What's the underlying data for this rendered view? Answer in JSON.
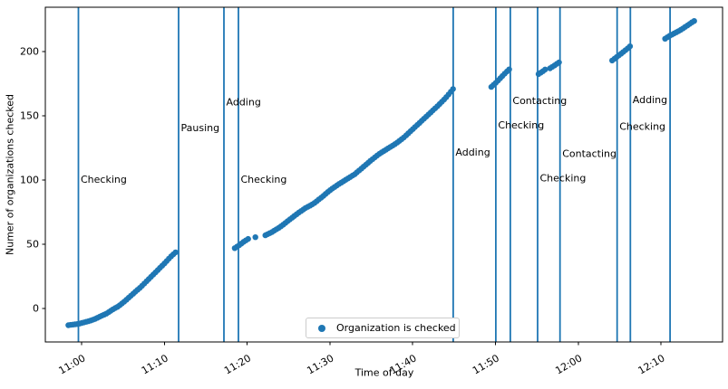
{
  "figure": {
    "background": "#ffffff"
  },
  "chart_data": {
    "type": "scatter",
    "title": "",
    "xlabel": "Time of day",
    "ylabel": "Numer of organizations checked",
    "grid": false,
    "x_unit": "minutes since 11:00",
    "xlim": [
      -4.38,
      77.44
    ],
    "ylim": [
      -26.06,
      234.51
    ],
    "xticks": [
      {
        "t": 0,
        "label": "11:00"
      },
      {
        "t": 10,
        "label": "11:10"
      },
      {
        "t": 20,
        "label": "11:20"
      },
      {
        "t": 30,
        "label": "11:30"
      },
      {
        "t": 40,
        "label": "11:40"
      },
      {
        "t": 50,
        "label": "11:50"
      },
      {
        "t": 60,
        "label": "12:00"
      },
      {
        "t": 70,
        "label": "12:10"
      }
    ],
    "yticks": [
      0,
      50,
      100,
      150,
      200
    ],
    "point_color": "#1f77b4",
    "line_color": "#1f77b4",
    "point_radius": 3.2,
    "dot_interval_min": 0.27,
    "legend": {
      "position": "lower center",
      "entries": [
        {
          "label": "Organization is checked",
          "marker": "dot",
          "color": "#1f77b4"
        }
      ]
    },
    "series": [
      {
        "name": "Organization is checked",
        "segments": [
          [
            [
              -1.6,
              -13
            ],
            [
              -1.0,
              -12.5
            ],
            [
              -0.4,
              -12
            ],
            [
              0.2,
              -11
            ],
            [
              0.9,
              -9.8
            ],
            [
              1.6,
              -8.2
            ],
            [
              2.3,
              -6
            ],
            [
              3.0,
              -4
            ],
            [
              3.7,
              -1
            ],
            [
              4.4,
              1.5
            ],
            [
              5.1,
              5
            ],
            [
              5.8,
              9
            ],
            [
              6.5,
              13
            ],
            [
              7.2,
              17
            ],
            [
              7.9,
              21.5
            ],
            [
              8.6,
              26
            ],
            [
              9.3,
              30.5
            ],
            [
              10.0,
              35
            ],
            [
              10.8,
              40.5
            ],
            [
              11.5,
              44.5
            ]
          ],
          [
            [
              18.5,
              47
            ],
            [
              19.0,
              49
            ],
            [
              19.6,
              52
            ],
            [
              20.2,
              54.5
            ]
          ],
          [
            [
              22.2,
              57
            ],
            [
              23,
              59.5
            ],
            [
              24,
              63.5
            ],
            [
              25,
              68.5
            ],
            [
              26,
              73.5
            ],
            [
              27,
              78
            ],
            [
              28,
              81.5
            ],
            [
              29,
              86.5
            ],
            [
              30,
              92
            ],
            [
              31,
              96.5
            ],
            [
              32,
              100.5
            ],
            [
              33,
              104.5
            ],
            [
              34,
              110
            ],
            [
              35,
              115.5
            ],
            [
              36,
              120.5
            ],
            [
              37,
              124.5
            ],
            [
              38,
              128.5
            ],
            [
              39,
              133.5
            ],
            [
              40,
              139.5
            ],
            [
              41,
              145.5
            ],
            [
              42,
              151.5
            ],
            [
              43,
              157.5
            ],
            [
              44,
              164
            ],
            [
              44.9,
              171
            ]
          ],
          [
            [
              49.5,
              172.5
            ],
            [
              50.1,
              176
            ],
            [
              50.7,
              180
            ],
            [
              51.3,
              184
            ],
            [
              51.8,
              187
            ]
          ],
          [
            [
              55.2,
              182.5
            ],
            [
              55.7,
              184.5
            ],
            [
              56.1,
              186.5
            ]
          ],
          [
            [
              56.6,
              187
            ],
            [
              57.2,
              189.5
            ],
            [
              57.9,
              192.5
            ]
          ],
          [
            [
              64.1,
              193
            ],
            [
              64.7,
              196
            ],
            [
              65.3,
              199
            ],
            [
              65.9,
              202
            ],
            [
              66.5,
              205.5
            ]
          ],
          [
            [
              70.5,
              210
            ],
            [
              71.1,
              212.5
            ],
            [
              71.7,
              214.5
            ],
            [
              72.3,
              216.5
            ],
            [
              73.0,
              219.5
            ],
            [
              73.8,
              223
            ],
            [
              74.2,
              224.5
            ]
          ]
        ],
        "singletons": [
          [
            21.0,
            55.5
          ]
        ]
      }
    ],
    "event_lines": [
      {
        "t": -0.38,
        "label": "Checking",
        "label_v": 98
      },
      {
        "t": 11.72,
        "label": "Pausing",
        "label_v": 138
      },
      {
        "t": 17.2,
        "label": "Adding",
        "label_v": 158
      },
      {
        "t": 18.95,
        "label": "Checking",
        "label_v": 98
      },
      {
        "t": 44.9,
        "label": "Adding",
        "label_v": 119
      },
      {
        "t": 50.05,
        "label": "Checking",
        "label_v": 140
      },
      {
        "t": 51.8,
        "label": "Contacting",
        "label_v": 159
      },
      {
        "t": 55.1,
        "label": "Checking",
        "label_v": 99
      },
      {
        "t": 57.8,
        "label": "Contacting",
        "label_v": 118
      },
      {
        "t": 64.7,
        "label": "Checking",
        "label_v": 139
      },
      {
        "t": 66.3,
        "label": "Adding",
        "label_v": 160
      },
      {
        "t": 71.1,
        "label": null,
        "label_v": null
      }
    ]
  }
}
